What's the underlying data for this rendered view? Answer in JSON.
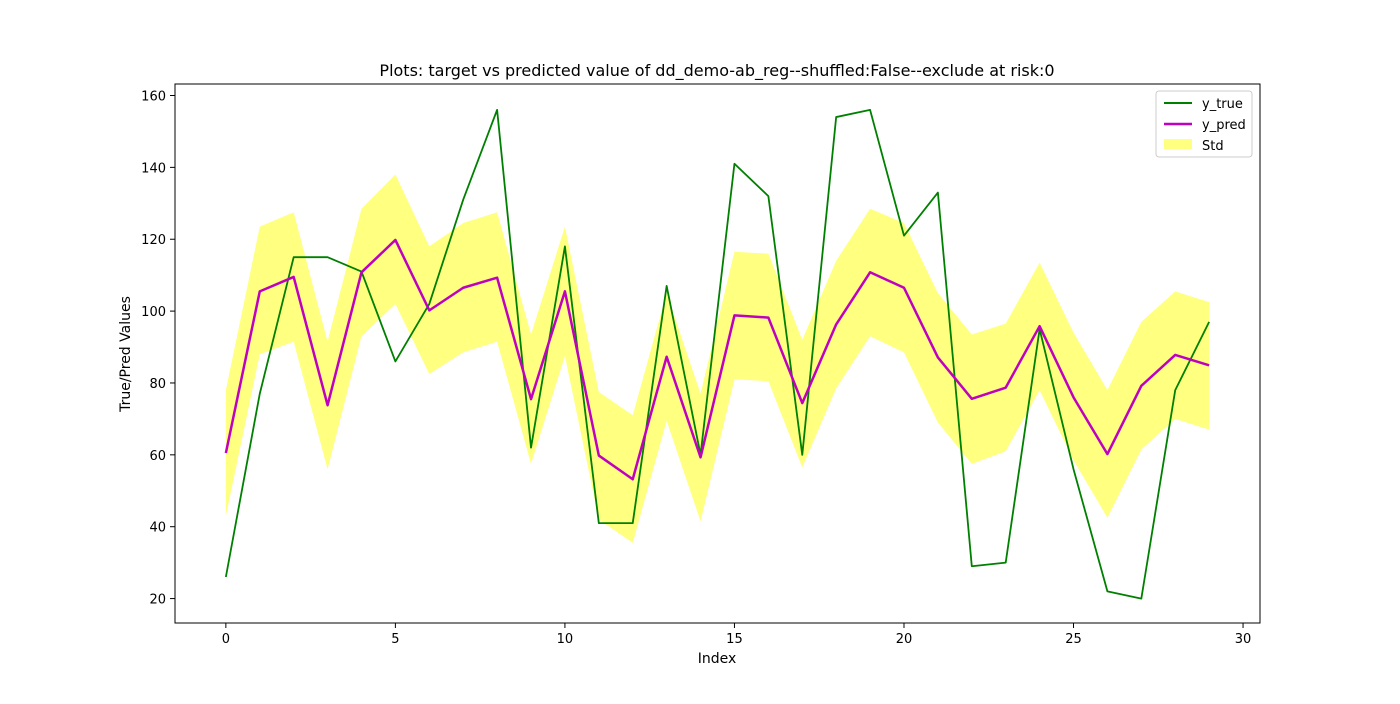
{
  "chart_data": {
    "type": "line",
    "title": "Plots: target vs predicted value of dd_demo-ab_reg--shuffled:False--exclude at risk:0",
    "xlabel": "Index",
    "ylabel": "True/Pred Values",
    "xlim": [
      -1.5,
      30.5
    ],
    "ylim": [
      13.2,
      163.2
    ],
    "xticks": [
      0,
      5,
      10,
      15,
      20,
      25,
      30
    ],
    "yticks": [
      20,
      40,
      60,
      80,
      100,
      120,
      140,
      160
    ],
    "grid": false,
    "legend_position": "top-right",
    "x": [
      0,
      1,
      2,
      3,
      4,
      5,
      6,
      7,
      8,
      9,
      10,
      11,
      12,
      13,
      14,
      15,
      16,
      17,
      18,
      19,
      20,
      21,
      22,
      23,
      24,
      25,
      26,
      27,
      28,
      29
    ],
    "series": [
      {
        "name": "y_true",
        "kind": "line",
        "color": "#008000",
        "values": [
          26,
          77,
          115,
          115,
          111,
          86,
          102,
          131,
          156,
          62,
          118,
          41,
          41,
          107,
          60,
          141,
          132,
          60,
          154,
          156,
          121,
          133,
          29,
          30,
          95,
          56,
          22,
          20,
          78,
          97
        ]
      },
      {
        "name": "y_pred",
        "kind": "line",
        "color": "#bf00bf",
        "values": [
          60.5,
          105.5,
          109.5,
          73.8,
          110.8,
          119.8,
          100.2,
          106.5,
          109.3,
          75.5,
          105.5,
          59.8,
          53.2,
          87.3,
          59.3,
          98.8,
          98.2,
          74.4,
          96.3,
          110.8,
          106.5,
          87.1,
          75.6,
          78.7,
          95.8,
          76,
          60.2,
          79.2,
          87.8,
          84.9
        ]
      },
      {
        "name": "Std",
        "kind": "band",
        "color": "#ffff80",
        "lower": [
          43,
          88,
          91.5,
          56,
          93,
          102,
          82.5,
          88.5,
          91.5,
          57.5,
          87.5,
          42,
          35.5,
          69.5,
          41.5,
          81,
          80.5,
          56.5,
          78.5,
          93,
          88.5,
          69,
          57.5,
          61,
          78,
          58.5,
          42.5,
          61.5,
          70,
          67
        ],
        "upper": [
          78,
          123.5,
          127.5,
          91.5,
          128.5,
          138,
          118,
          124.5,
          127.5,
          93.5,
          123.5,
          77.5,
          71,
          105,
          77,
          116.5,
          116,
          92,
          114,
          128.5,
          124.5,
          105,
          93.5,
          96.5,
          113.5,
          94,
          78,
          97,
          105.5,
          102.5
        ]
      }
    ]
  }
}
